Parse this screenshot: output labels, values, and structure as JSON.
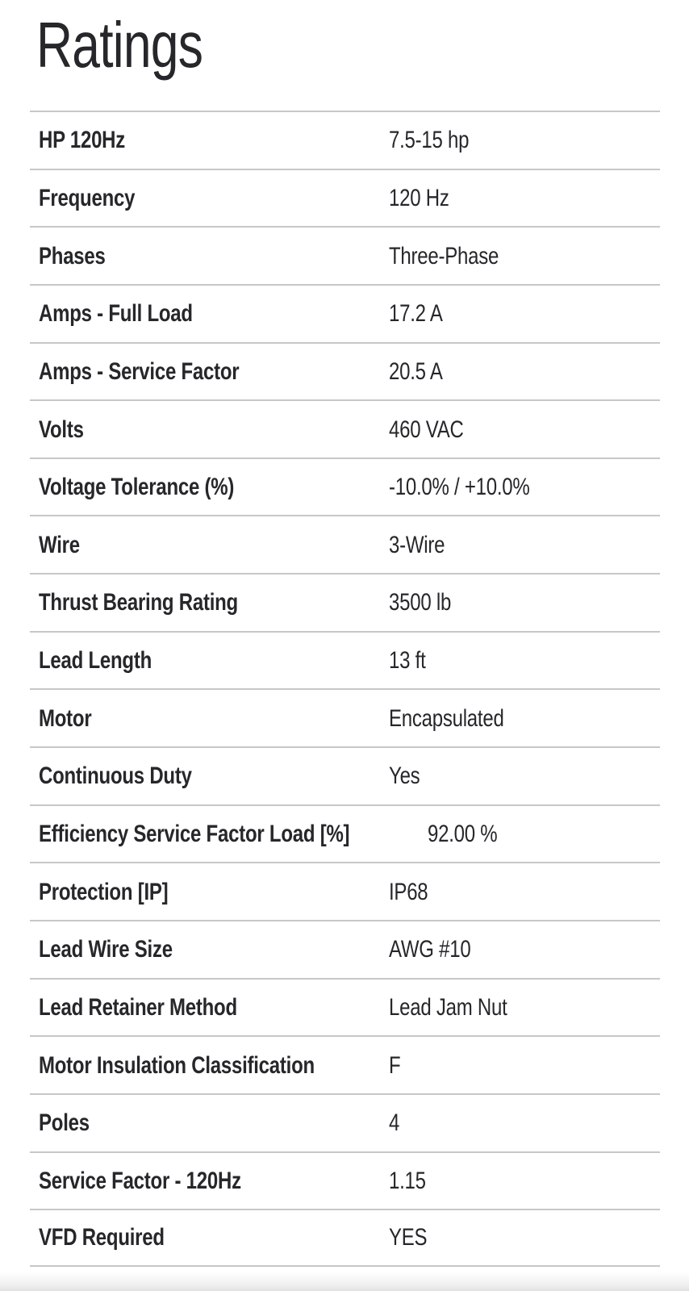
{
  "page": {
    "title": "Ratings"
  },
  "colors": {
    "background": "#ffffff",
    "text": "#26272a",
    "divider": "#c7c7c7",
    "bottom_fade": "#e0e0e0"
  },
  "ratings_table": {
    "rows": [
      {
        "label": "HP 120Hz",
        "value": "7.5-15 hp"
      },
      {
        "label": "Frequency",
        "value": "120 Hz"
      },
      {
        "label": "Phases",
        "value": "Three-Phase"
      },
      {
        "label": "Amps - Full Load",
        "value": "17.2 A"
      },
      {
        "label": "Amps - Service Factor",
        "value": "20.5 A"
      },
      {
        "label": "Volts",
        "value": "460 VAC"
      },
      {
        "label": "Voltage Tolerance (%)",
        "value": "-10.0% / +10.0%"
      },
      {
        "label": "Wire",
        "value": "3-Wire"
      },
      {
        "label": "Thrust Bearing Rating",
        "value": "3500 lb"
      },
      {
        "label": "Lead Length",
        "value": "13 ft"
      },
      {
        "label": "Motor",
        "value": "Encapsulated"
      },
      {
        "label": "Continuous Duty",
        "value": "Yes"
      },
      {
        "label": "Efficiency Service Factor Load [%]",
        "value": "92.00 %"
      },
      {
        "label": "Protection [IP]",
        "value": "IP68"
      },
      {
        "label": "Lead Wire Size",
        "value": "AWG #10"
      },
      {
        "label": "Lead Retainer Method",
        "value": "Lead Jam Nut"
      },
      {
        "label": "Motor Insulation Classification",
        "value": "F"
      },
      {
        "label": "Poles",
        "value": "4"
      },
      {
        "label": "Service Factor - 120Hz",
        "value": "1.15"
      },
      {
        "label": "VFD Required",
        "value": "YES"
      }
    ]
  }
}
